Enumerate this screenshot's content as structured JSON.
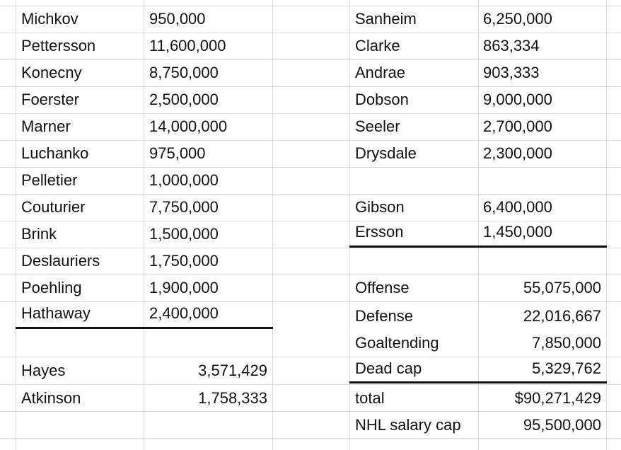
{
  "roster_left": [
    {
      "name": "Michkov",
      "salary": "950,000"
    },
    {
      "name": "Pettersson",
      "salary": "11,600,000"
    },
    {
      "name": "Konecny",
      "salary": "8,750,000"
    },
    {
      "name": "Foerster",
      "salary": "2,500,000"
    },
    {
      "name": "Marner",
      "salary": "14,000,000"
    },
    {
      "name": "Luchanko",
      "salary": "975,000"
    },
    {
      "name": "Pelletier",
      "salary": "1,000,000"
    },
    {
      "name": "Couturier",
      "salary": "7,750,000"
    },
    {
      "name": "Brink",
      "salary": "1,500,000"
    },
    {
      "name": "Deslauriers",
      "salary": "1,750,000"
    },
    {
      "name": "Poehling",
      "salary": "1,900,000"
    },
    {
      "name": "Hathaway",
      "salary": "2,400,000"
    }
  ],
  "dead_cap_left": [
    {
      "name": "Hayes",
      "salary": "3,571,429"
    },
    {
      "name": "Atkinson",
      "salary": "1,758,333"
    }
  ],
  "defense_right": [
    {
      "name": "Sanheim",
      "salary": "6,250,000"
    },
    {
      "name": "Clarke",
      "salary": "863,334"
    },
    {
      "name": "Andrae",
      "salary": "903,333"
    },
    {
      "name": "Dobson",
      "salary": "9,000,000"
    },
    {
      "name": "Seeler",
      "salary": "2,700,000"
    },
    {
      "name": "Drysdale",
      "salary": "2,300,000"
    }
  ],
  "goalies_right": [
    {
      "name": "Gibson",
      "salary": "6,400,000"
    },
    {
      "name": "Ersson",
      "salary": "1,450,000"
    }
  ],
  "summary": [
    {
      "label": "Offense",
      "value": "55,075,000"
    },
    {
      "label": "Defense",
      "value": "22,016,667"
    },
    {
      "label": "Goaltending",
      "value": "7,850,000"
    },
    {
      "label": "Dead cap",
      "value": "5,329,762"
    }
  ],
  "total": {
    "label": "total",
    "value": "$90,271,429"
  },
  "cap": {
    "label": "NHL salary cap",
    "value": "95,500,000"
  },
  "colors": {
    "gridline": "#dcdcdc",
    "text": "#111111",
    "border": "#111111"
  }
}
